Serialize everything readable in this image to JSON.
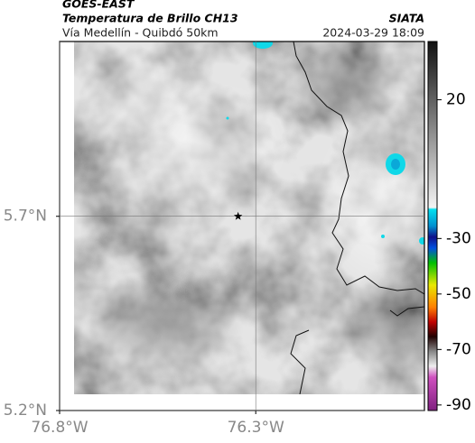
{
  "header": {
    "source": "GOES-EAST",
    "title": "Temperatura de Brillo CH13",
    "subtitle": "Vía Medellín - Quibdó 50km",
    "org": "SIATA",
    "timestamp": "2024-03-29 18:09"
  },
  "map": {
    "xlim": [
      -76.8,
      -75.87
    ],
    "ylim": [
      5.2,
      6.15
    ],
    "xticks": [
      {
        "value": -76.8,
        "label": "76.8°W"
      },
      {
        "value": -76.3,
        "label": "76.3°W"
      }
    ],
    "yticks": [
      {
        "value": 5.7,
        "label": "5.7°N"
      },
      {
        "value": 5.2,
        "label": "5.2°N"
      }
    ],
    "station": {
      "lon": -76.345,
      "lat": 5.7
    }
  },
  "colorbar": {
    "lim": [
      -92,
      41
    ],
    "ticks": [
      20,
      -30,
      -50,
      -70,
      -90
    ]
  }
}
